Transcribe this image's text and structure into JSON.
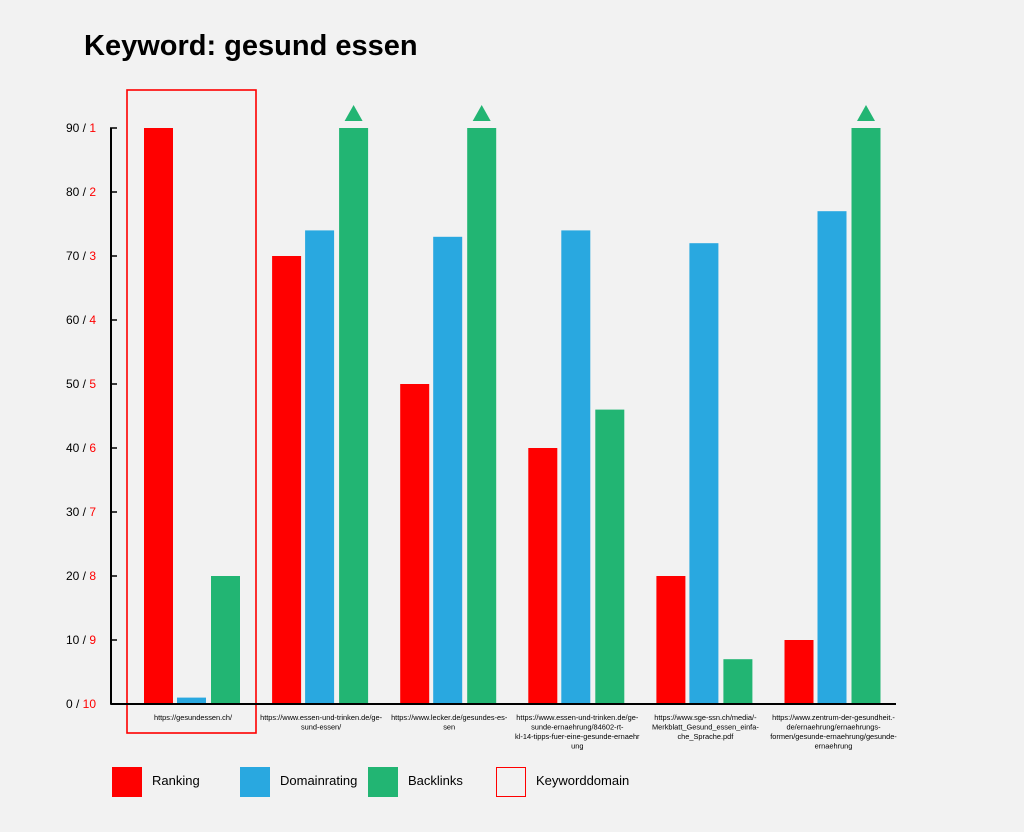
{
  "chart_data": {
    "type": "bar",
    "title": "Keyword: gesund essen",
    "categories": [
      "https://gesundessen.ch/",
      "https://www.essen-und-trinken.de/ge-sund-essen/",
      "https://www.lecker.de/gesundes-es-sen",
      "https://www.essen-und-trinken.de/ge-sunde-ernaehrung/84602-rt-kl-14-tipps-fuer-eine-gesunde-ernaehr-ung",
      "https://www.sge-ssn.ch/media/-Merkblatt_Gesund_essen_einfa-che_Sprache.pdf",
      "https://www.zentrum-der-gesundheit.-de/ernaehrung/ernaehrungs-formen/gesunde-ernaehrung/gesunde-ernaehrung"
    ],
    "category_lines": [
      [
        "https://gesundessen.ch/"
      ],
      [
        "https://www.essen-und-trinken.de/ge-",
        "sund-essen/"
      ],
      [
        "https://www.lecker.de/gesundes-es-",
        "sen"
      ],
      [
        "https://www.essen-und-trinken.de/ge-",
        "sunde-ernaehrung/84602-rt-",
        "kl-14-tipps-fuer-eine-gesunde-ernaehr",
        "ung"
      ],
      [
        "https://www.sge-ssn.ch/media/-",
        "Merkblatt_Gesund_essen_einfa-",
        "che_Sprache.pdf"
      ],
      [
        "https://www.zentrum-der-gesundheit.-",
        "de/ernaehrung/ernaehrungs-",
        "formen/gesunde-ernaehrung/gesunde-",
        "ernaehrung"
      ]
    ],
    "series": [
      {
        "name": "Ranking",
        "color": "#ff0000",
        "values": [
          90,
          70,
          50,
          40,
          20,
          10
        ]
      },
      {
        "name": "Domainrating",
        "color": "#29a8e0",
        "values": [
          1,
          74,
          73,
          74,
          72,
          77
        ]
      },
      {
        "name": "Backlinks",
        "color": "#22b573",
        "values": [
          20,
          90,
          90,
          46,
          7,
          90
        ]
      }
    ],
    "overflow_markers": {
      "series": "Backlinks",
      "categories": [
        1,
        2,
        5
      ],
      "color": "#22b573",
      "shape": "triangle"
    },
    "ylim": [
      0,
      90
    ],
    "yticks": [
      {
        "value": 90,
        "label": "90 / ",
        "rank": "1"
      },
      {
        "value": 80,
        "label": "80 / ",
        "rank": "2"
      },
      {
        "value": 70,
        "label": "70 / ",
        "rank": "3"
      },
      {
        "value": 60,
        "label": "60 / ",
        "rank": "4"
      },
      {
        "value": 50,
        "label": "50 / ",
        "rank": "5"
      },
      {
        "value": 40,
        "label": "40 / ",
        "rank": "6"
      },
      {
        "value": 30,
        "label": "30 / ",
        "rank": "7"
      },
      {
        "value": 20,
        "label": "20 / ",
        "rank": "8"
      },
      {
        "value": 10,
        "label": "10 / ",
        "rank": "9"
      },
      {
        "value": 0,
        "label": "0 / ",
        "rank": "10"
      }
    ],
    "rank_color": "#ff0000",
    "highlight": {
      "category": 0,
      "color": "#ff0000"
    },
    "grid": false,
    "legend_position": "bottom"
  },
  "legend": [
    {
      "label": "Ranking",
      "color": "#ff0000",
      "style": "filled"
    },
    {
      "label": "Domainrating",
      "color": "#29a8e0",
      "style": "filled"
    },
    {
      "label": "Backlinks",
      "color": "#22b573",
      "style": "filled"
    },
    {
      "label": "Keyworddomain",
      "color": "#ff0000",
      "style": "outline"
    }
  ]
}
